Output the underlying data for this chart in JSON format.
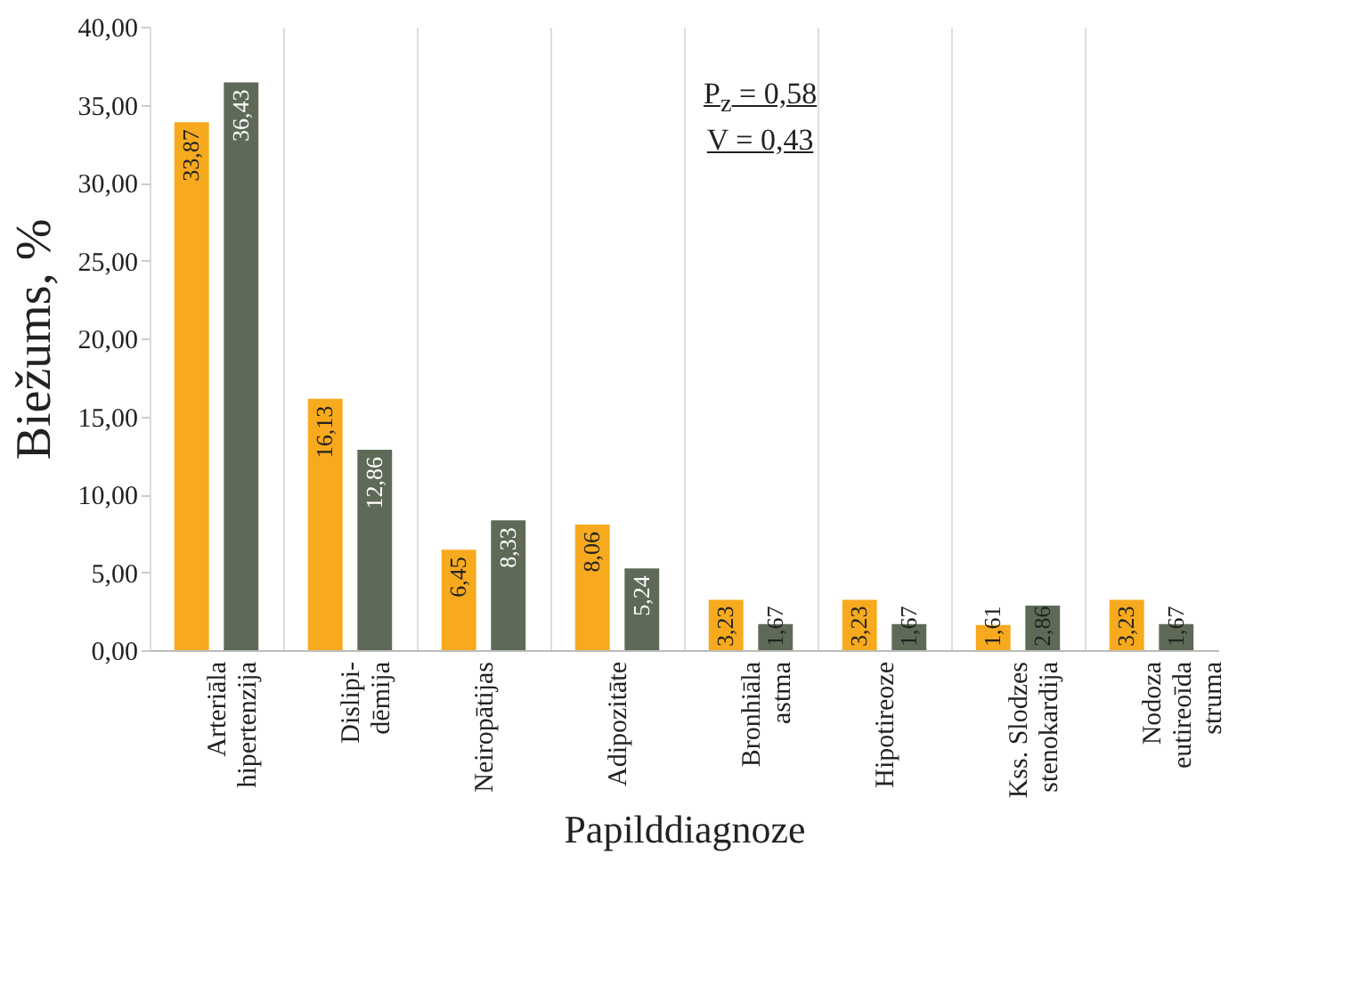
{
  "chart_data": {
    "type": "bar",
    "xlabel": "Papilddiagnoze",
    "ylabel": "Biežums, %",
    "categories": [
      "Arteriāla\nhipertenzija",
      "Dislipi-\ndēmija",
      "Neiropātijas",
      "Adipozitāte",
      "Bronhiāla\nastma",
      "Hipotireoze",
      "Kss. Slodzes\nstenokardija",
      "Nodoza\neutireoīda\nstruma"
    ],
    "series": [
      {
        "color": "#f7aa1e",
        "values": [
          33.87,
          16.13,
          6.45,
          8.06,
          3.23,
          3.23,
          1.61,
          3.23
        ],
        "value_labels": [
          "33,87",
          "16,13",
          "6,45",
          "8,06",
          "3,23",
          "3,23",
          "1,61",
          "3,23"
        ]
      },
      {
        "color": "#5e6a57",
        "values": [
          36.43,
          12.86,
          8.33,
          5.24,
          1.67,
          1.67,
          2.86,
          1.67
        ],
        "value_labels": [
          "36,43",
          "12,86",
          "8,33",
          "5,24",
          "1,67",
          "1,67",
          "2,86",
          "1,67"
        ]
      }
    ],
    "ylim": [
      0,
      40
    ],
    "yticks": [
      {
        "value": 0,
        "label": "0,00"
      },
      {
        "value": 5,
        "label": "5,00"
      },
      {
        "value": 10,
        "label": "10,00"
      },
      {
        "value": 15,
        "label": "15,00"
      },
      {
        "value": 20,
        "label": "20,00"
      },
      {
        "value": 25,
        "label": "25,00"
      },
      {
        "value": 30,
        "label": "30,00"
      },
      {
        "value": 35,
        "label": "35,00"
      },
      {
        "value": 40,
        "label": "40,00"
      }
    ],
    "grid": "x",
    "annotations": [
      "P$_{z}$ = 0,58",
      "V = 0,43"
    ]
  }
}
